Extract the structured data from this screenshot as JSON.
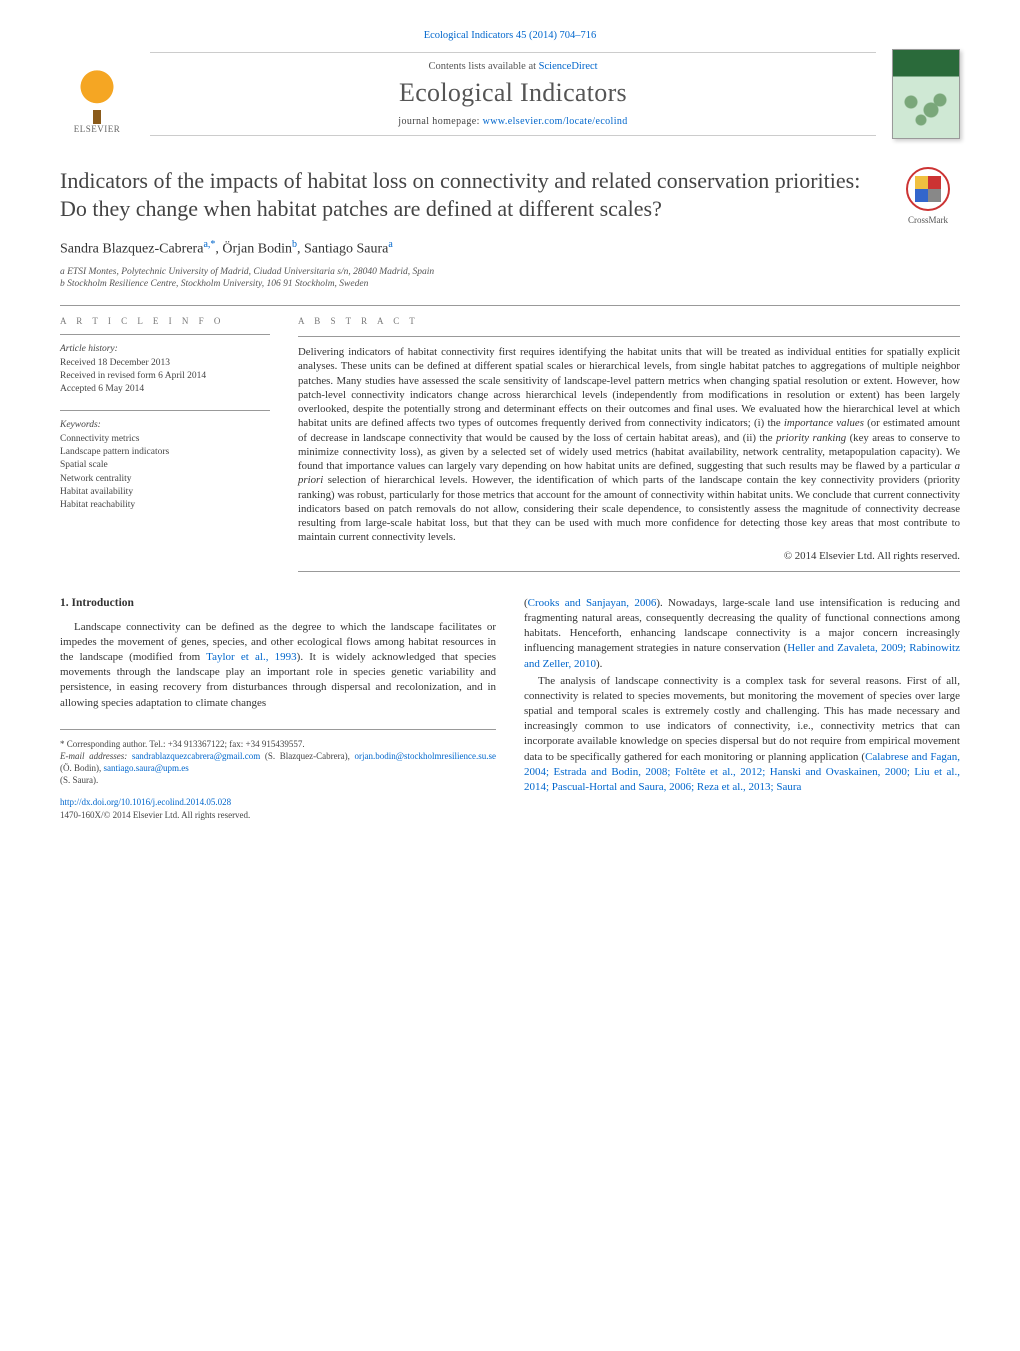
{
  "journal_ref": "Ecological Indicators 45 (2014) 704–716",
  "contents_prefix": "Contents lists available at ",
  "contents_link": "ScienceDirect",
  "journal_name": "Ecological Indicators",
  "homepage_prefix": "journal homepage: ",
  "homepage_url": "www.elsevier.com/locate/ecolind",
  "elsevier_label": "ELSEVIER",
  "crossmark_label": "CrossMark",
  "title": "Indicators of the impacts of habitat loss on connectivity and related conservation priorities: Do they change when habitat patches are defined at different scales?",
  "authors_html": "Sandra Blazquez-Cabrera<sup>a,*</sup>, Örjan Bodin<sup>b</sup>, Santiago Saura<sup>a</sup>",
  "affiliations": {
    "a": "a ETSI Montes, Polytechnic University of Madrid, Ciudad Universitaria s/n, 28040 Madrid, Spain",
    "b": "b Stockholm Resilience Centre, Stockholm University, 106 91 Stockholm, Sweden"
  },
  "article_info_heading": "A R T I C L E   I N F O",
  "abstract_heading": "A B S T R A C T",
  "history": {
    "label": "Article history:",
    "received": "Received 18 December 2013",
    "revised": "Received in revised form 6 April 2014",
    "accepted": "Accepted 6 May 2014"
  },
  "keywords": {
    "label": "Keywords:",
    "items": [
      "Connectivity metrics",
      "Landscape pattern indicators",
      "Spatial scale",
      "Network centrality",
      "Habitat availability",
      "Habitat reachability"
    ]
  },
  "abstract": "Delivering indicators of habitat connectivity first requires identifying the habitat units that will be treated as individual entities for spatially explicit analyses. These units can be defined at different spatial scales or hierarchical levels, from single habitat patches to aggregations of multiple neighbor patches. Many studies have assessed the scale sensitivity of landscape-level pattern metrics when changing spatial resolution or extent. However, how patch-level connectivity indicators change across hierarchical levels (independently from modifications in resolution or extent) has been largely overlooked, despite the potentially strong and determinant effects on their outcomes and final uses. We evaluated how the hierarchical level at which habitat units are defined affects two types of outcomes frequently derived from connectivity indicators; (i) the importance values (or estimated amount of decrease in landscape connectivity that would be caused by the loss of certain habitat areas), and (ii) the priority ranking (key areas to conserve to minimize connectivity loss), as given by a selected set of widely used metrics (habitat availability, network centrality, metapopulation capacity). We found that importance values can largely vary depending on how habitat units are defined, suggesting that such results may be flawed by a particular a priori selection of hierarchical levels. However, the identification of which parts of the landscape contain the key connectivity providers (priority ranking) was robust, particularly for those metrics that account for the amount of connectivity within habitat units. We conclude that current connectivity indicators based on patch removals do not allow, considering their scale dependence, to consistently assess the magnitude of connectivity decrease resulting from large-scale habitat loss, but that they can be used with much more confidence for detecting those key areas that most contribute to maintain current connectivity levels.",
  "copyright_line": "© 2014 Elsevier Ltd. All rights reserved.",
  "section1_heading": "1. Introduction",
  "intro_para1_a": "Landscape connectivity can be defined as the degree to which the landscape facilitates or impedes the movement of genes, species, and other ecological flows among habitat resources in the landscape (modified from ",
  "intro_para1_ref1": "Taylor et al., 1993",
  "intro_para1_b": "). It is widely acknowledged that species movements through the landscape play an important role in species genetic variability and persistence, in easing recovery from disturbances through dispersal and recolonization, and in allowing species adaptation to climate changes",
  "intro_para2_a": "(",
  "intro_para2_ref1": "Crooks and Sanjayan, 2006",
  "intro_para2_b": "). Nowadays, large-scale land use intensification is reducing and fragmenting natural areas, consequently decreasing the quality of functional connections among habitats. Henceforth, enhancing landscape connectivity is a major concern increasingly influencing management strategies in nature conservation (",
  "intro_para2_ref2": "Heller and Zavaleta, 2009; Rabinowitz and Zeller, 2010",
  "intro_para2_c": ").",
  "intro_para3_a": "The analysis of landscape connectivity is a complex task for several reasons. First of all, connectivity is related to species movements, but monitoring the movement of species over large spatial and temporal scales is extremely costly and challenging. This has made necessary and increasingly common to use indicators of connectivity, i.e., connectivity metrics that can incorporate available knowledge on species dispersal but do not require from empirical movement data to be specifically gathered for each monitoring or planning application (",
  "intro_para3_ref1": "Calabrese and Fagan, 2004; Estrada and Bodin, 2008; Foltête et al., 2012; Hanski and Ovaskainen, 2000; Liu et al., 2014; Pascual-Hortal and Saura, 2006; Reza et al., 2013; Saura",
  "footer": {
    "corresponding": "* Corresponding author. Tel.: +34 913367122; fax: +34 915439557.",
    "email_label": "E-mail addresses: ",
    "email1": "sandrablazquezcabrera@gmail.com",
    "email1_name": " (S. Blazquez-Cabrera), ",
    "email2": "orjan.bodin@stockholmresilience.su.se",
    "email2_name": " (Ö. Bodin), ",
    "email3": "santiago.saura@upm.es",
    "email3_name": " (S. Saura).",
    "doi": "http://dx.doi.org/10.1016/j.ecolind.2014.05.028",
    "issn_line": "1470-160X/© 2014 Elsevier Ltd. All rights reserved."
  },
  "colors": {
    "link": "#0066cc",
    "text": "#333333",
    "rule": "#999999",
    "muted": "#555555"
  },
  "fontsizes_pt": {
    "title": 16,
    "authors": 10.5,
    "body": 8.5,
    "abstract": 8.2,
    "meta": 7.2,
    "journal_name": 19
  }
}
